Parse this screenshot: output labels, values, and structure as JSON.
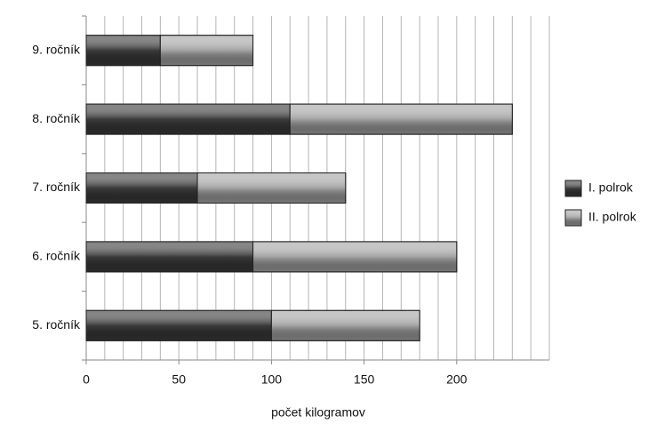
{
  "chart_data": {
    "type": "stacked-bar-horizontal",
    "categories": [
      "5. ročník",
      "6. ročník",
      "7. ročník",
      "8. ročník",
      "9. ročník"
    ],
    "series": [
      {
        "name": "I. polrok",
        "color": "#3b3b3b",
        "values": [
          100,
          90,
          60,
          110,
          40
        ]
      },
      {
        "name": "II. polrok",
        "color": "#a3a3a3",
        "values": [
          80,
          110,
          80,
          120,
          50
        ]
      }
    ],
    "xlabel": "počet kilogramov",
    "xlim": [
      0,
      250
    ],
    "xticks": [
      0,
      50,
      100,
      150,
      200
    ],
    "grid": true,
    "grid_step": 10,
    "legend": "right"
  }
}
